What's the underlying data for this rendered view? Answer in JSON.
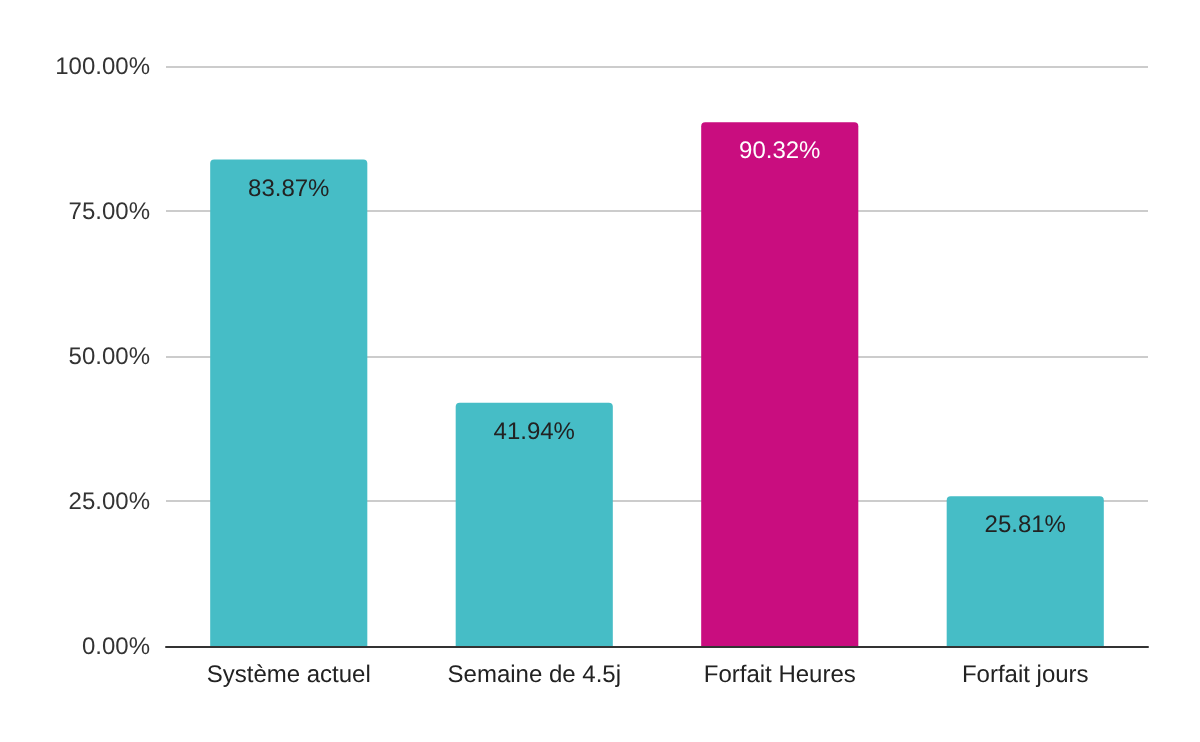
{
  "chart_data": {
    "type": "bar",
    "categories": [
      "Système actuel",
      "Semaine de 4.5j",
      "Forfait Heures",
      "Forfait jours"
    ],
    "values": [
      83.87,
      41.94,
      90.32,
      25.81
    ],
    "colors": [
      "#46bdc6",
      "#46bdc6",
      "#c90d7f",
      "#46bdc6"
    ],
    "value_labels": [
      "83.87%",
      "41.94%",
      "90.32%",
      "25.81%"
    ],
    "ylim": [
      0,
      100
    ],
    "yticks": [
      {
        "value": 0,
        "label": "0.00%"
      },
      {
        "value": 25,
        "label": "25.00%"
      },
      {
        "value": 50,
        "label": "50.00%"
      },
      {
        "value": 75,
        "label": "75.00%"
      },
      {
        "value": 100,
        "label": "100.00%"
      }
    ],
    "grid": "y"
  }
}
